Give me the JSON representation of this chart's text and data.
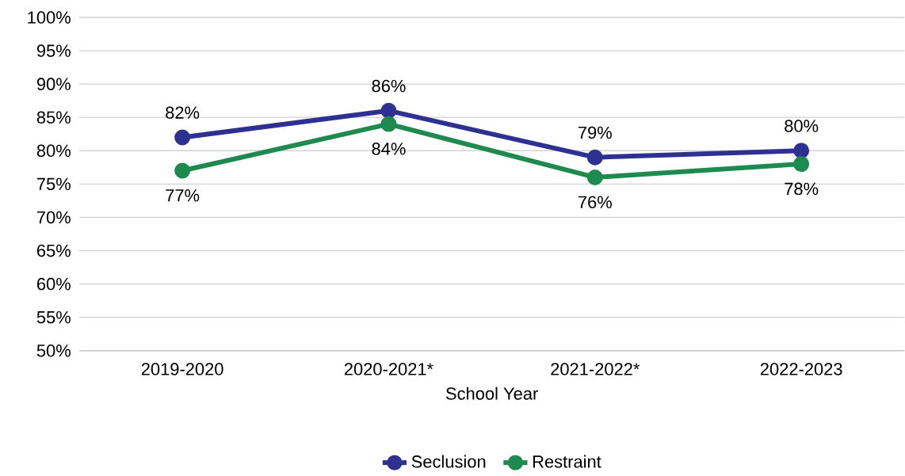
{
  "chart_data": {
    "type": "line",
    "xlabel": "School Year",
    "categories": [
      "2019-2020",
      "2020-2021*",
      "2021-2022*",
      "2022-2023"
    ],
    "series": [
      {
        "name": "Seclusion",
        "color": "#2e3192",
        "values": [
          82,
          86,
          79,
          80
        ],
        "value_labels": [
          "82%",
          "86%",
          "79%",
          "80%"
        ]
      },
      {
        "name": "Restraint",
        "color": "#1e8a50",
        "values": [
          77,
          84,
          76,
          78
        ],
        "value_labels": [
          "77%",
          "84%",
          "76%",
          "78%"
        ]
      }
    ],
    "ylim": [
      50,
      100
    ],
    "yticks": [
      {
        "value": 50,
        "label": "50%"
      },
      {
        "value": 55,
        "label": "55%"
      },
      {
        "value": 60,
        "label": "60%"
      },
      {
        "value": 65,
        "label": "65%"
      },
      {
        "value": 70,
        "label": "70%"
      },
      {
        "value": 75,
        "label": "75%"
      },
      {
        "value": 80,
        "label": "80%"
      },
      {
        "value": 85,
        "label": "85%"
      },
      {
        "value": 90,
        "label": "90%"
      },
      {
        "value": 95,
        "label": "95%"
      },
      {
        "value": 100,
        "label": "100%"
      }
    ],
    "grid": "y",
    "legend": "bottom",
    "marker": "circle"
  }
}
